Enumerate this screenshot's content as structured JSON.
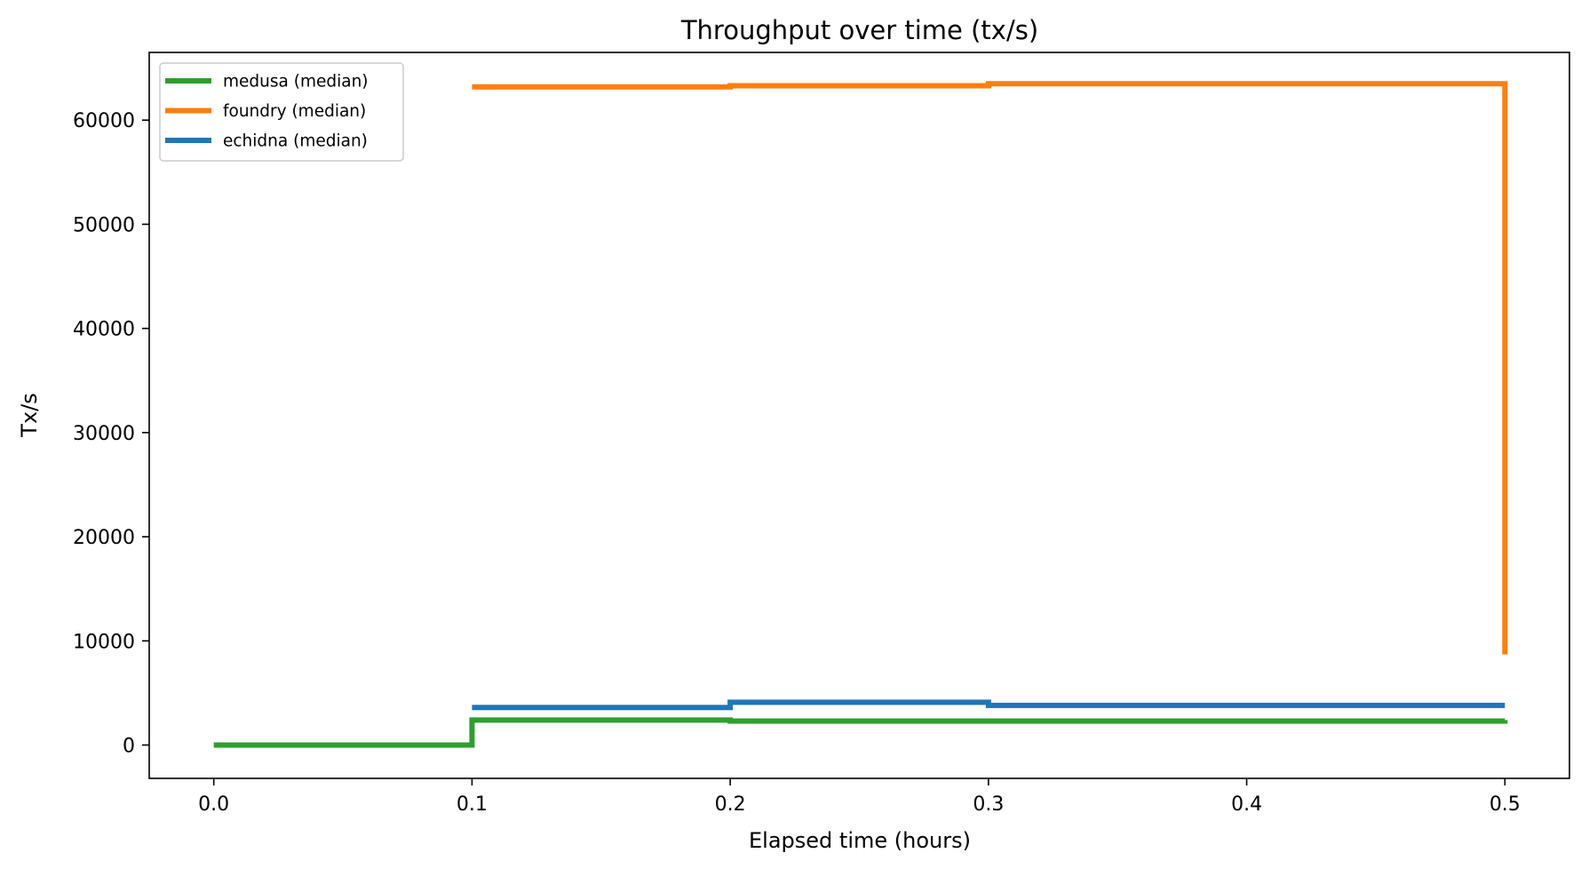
{
  "chart_data": {
    "type": "line",
    "title": "Throughput over time (tx/s)",
    "xlabel": "Elapsed time (hours)",
    "ylabel": "Tx/s",
    "xlim": [
      -0.025,
      0.525
    ],
    "ylim": [
      -3200,
      66500
    ],
    "xticks": [
      0.0,
      0.1,
      0.2,
      0.3,
      0.4,
      0.5
    ],
    "xtick_labels": [
      "0.0",
      "0.1",
      "0.2",
      "0.3",
      "0.4",
      "0.5"
    ],
    "yticks": [
      0,
      10000,
      20000,
      30000,
      40000,
      50000,
      60000
    ],
    "ytick_labels": [
      "0",
      "10000",
      "20000",
      "30000",
      "40000",
      "50000",
      "60000"
    ],
    "grid": false,
    "legend_position": "top-left",
    "series": [
      {
        "name": "medusa (median)",
        "color": "#2ca02c",
        "step": "post",
        "x": [
          0.0,
          0.1,
          0.2,
          0.3,
          0.5
        ],
        "y": [
          0,
          2400,
          2300,
          2300,
          2400
        ]
      },
      {
        "name": "foundry (median)",
        "color": "#ff7f0e",
        "step": "post",
        "x": [
          0.1,
          0.2,
          0.3,
          0.5,
          0.5
        ],
        "y": [
          63200,
          63300,
          63500,
          63500,
          8700
        ]
      },
      {
        "name": "echidna (median)",
        "color": "#1f77b4",
        "step": "post",
        "x": [
          0.1,
          0.2,
          0.3,
          0.5
        ],
        "y": [
          3600,
          4100,
          3800,
          3800
        ]
      }
    ]
  }
}
